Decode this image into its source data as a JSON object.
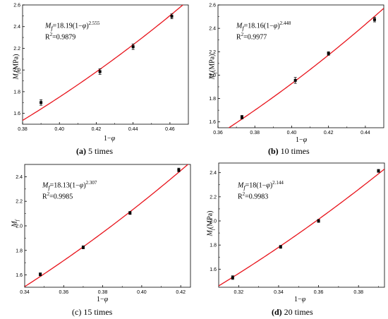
{
  "chart_data": [
    {
      "type": "scatter",
      "id": "a",
      "caption_letter": "(a)",
      "caption_text": " 5 times",
      "ylabel_prefix": "M",
      "ylabel_sub": "f",
      "ylabel_unit": "(MPa)",
      "xlabel_prefix": "1−",
      "xlabel_var": "φ",
      "xlim": [
        0.38,
        0.47
      ],
      "ylim": [
        1.5,
        2.6
      ],
      "xticks": [
        "0.38",
        "0.40",
        "0.42",
        "0.44",
        "0.46"
      ],
      "xtick_values": [
        0.38,
        0.4,
        0.42,
        0.44,
        0.46
      ],
      "yticks": [
        "1.6",
        "1.8",
        "2.0",
        "2.2",
        "2.4",
        "2.6"
      ],
      "ytick_values": [
        1.6,
        1.8,
        2.0,
        2.2,
        2.4,
        2.6
      ],
      "points": [
        {
          "x": 0.39,
          "y": 1.7,
          "err": 0.025
        },
        {
          "x": 0.422,
          "y": 1.985,
          "err": 0.025
        },
        {
          "x": 0.44,
          "y": 2.215,
          "err": 0.025
        },
        {
          "x": 0.461,
          "y": 2.495,
          "err": 0.022
        }
      ],
      "fit": {
        "a": 18.19,
        "b": 2.555
      },
      "eq_prefix": "M",
      "eq_sub": "f",
      "eq_mid": "=18.19(1−",
      "eq_var": "φ",
      "eq_close": ")",
      "eq_exp": "2.555",
      "r2_label": "R",
      "r2_sup": "2",
      "r2_val": "=0.9879",
      "colors": {
        "fit": "#e8141c",
        "points": "#000000"
      }
    },
    {
      "type": "scatter",
      "id": "b",
      "caption_letter": "(b)",
      "caption_text": " 10 times",
      "ylabel_prefix": "M",
      "ylabel_sub": "f",
      "ylabel_unit": "(MPa)",
      "xlabel_prefix": "1−",
      "xlabel_var": "φ",
      "xlim": [
        0.36,
        0.45
      ],
      "ylim": [
        1.55,
        2.6
      ],
      "xticks": [
        "0.36",
        "0.38",
        "0.40",
        "0.42",
        "0.44"
      ],
      "xtick_values": [
        0.36,
        0.38,
        0.4,
        0.42,
        0.44
      ],
      "yticks": [
        "1.6",
        "1.8",
        "2.0",
        "2.2",
        "2.4",
        "2.6"
      ],
      "ytick_values": [
        1.6,
        1.8,
        2.0,
        2.2,
        2.4,
        2.6
      ],
      "points": [
        {
          "x": 0.373,
          "y": 1.64,
          "err": 0.015
        },
        {
          "x": 0.402,
          "y": 1.955,
          "err": 0.025
        },
        {
          "x": 0.42,
          "y": 2.185,
          "err": 0.015
        },
        {
          "x": 0.445,
          "y": 2.475,
          "err": 0.02
        }
      ],
      "fit": {
        "a": 18.16,
        "b": 2.448
      },
      "eq_prefix": "M",
      "eq_sub": "f",
      "eq_mid": "=18.16(1−",
      "eq_var": "φ",
      "eq_close": ")",
      "eq_exp": "2.448",
      "r2_label": "R",
      "r2_sup": "2",
      "r2_val": "=0.9977",
      "colors": {
        "fit": "#e8141c",
        "points": "#000000"
      }
    },
    {
      "type": "scatter",
      "id": "c",
      "caption_letter": "",
      "caption_text": "(c) 15 times",
      "ylabel_prefix": "M",
      "ylabel_sub": "f",
      "ylabel_unit": "",
      "xlabel_prefix": "1−",
      "xlabel_var": "φ",
      "xlim": [
        0.34,
        0.425
      ],
      "ylim": [
        1.5,
        2.5
      ],
      "xticks": [
        "0.34",
        "0.36",
        "0.38",
        "0.40",
        "0.42"
      ],
      "xtick_values": [
        0.34,
        0.36,
        0.38,
        0.4,
        0.42
      ],
      "yticks": [
        "1.6",
        "1.8",
        "2.0",
        "2.2",
        "2.4"
      ],
      "ytick_values": [
        1.6,
        1.8,
        2.0,
        2.2,
        2.4
      ],
      "points": [
        {
          "x": 0.348,
          "y": 1.605,
          "err": 0.012
        },
        {
          "x": 0.37,
          "y": 1.825,
          "err": 0.012
        },
        {
          "x": 0.394,
          "y": 2.105,
          "err": 0.012
        },
        {
          "x": 0.419,
          "y": 2.455,
          "err": 0.015
        }
      ],
      "fit": {
        "a": 18.13,
        "b": 2.307
      },
      "eq_prefix": "M",
      "eq_sub": "f",
      "eq_mid": "=18.13(1−",
      "eq_var": "φ",
      "eq_close": ")",
      "eq_exp": "2.307",
      "r2_label": "R",
      "r2_sup": "2",
      "r2_val": "=0.9985",
      "colors": {
        "fit": "#e8141c",
        "points": "#000000"
      }
    },
    {
      "type": "scatter",
      "id": "d",
      "caption_letter": "(d)",
      "caption_text": " 20 times",
      "ylabel_prefix": "M",
      "ylabel_sub": "f",
      "ylabel_unit": "(MPa)",
      "xlabel_prefix": "1−",
      "xlabel_var": "φ",
      "xlim": [
        0.31,
        0.393
      ],
      "ylim": [
        1.45,
        2.48
      ],
      "xticks": [
        "0.32",
        "0.34",
        "0.36",
        "0.38"
      ],
      "xtick_values": [
        0.32,
        0.34,
        0.36,
        0.38
      ],
      "yticks": [
        "1.6",
        "1.8",
        "2.0",
        "2.2",
        "2.4"
      ],
      "ytick_values": [
        1.6,
        1.8,
        2.0,
        2.2,
        2.4
      ],
      "points": [
        {
          "x": 0.317,
          "y": 1.53,
          "err": 0.015
        },
        {
          "x": 0.341,
          "y": 1.785,
          "err": 0.012
        },
        {
          "x": 0.36,
          "y": 2.0,
          "err": 0.012
        },
        {
          "x": 0.39,
          "y": 2.415,
          "err": 0.012
        }
      ],
      "fit": {
        "a": 18.0,
        "b": 2.144
      },
      "eq_prefix": "M",
      "eq_sub": "f",
      "eq_mid": "=18(1−",
      "eq_var": "φ",
      "eq_close": ")",
      "eq_exp": "2.144",
      "r2_label": "R",
      "r2_sup": "2",
      "r2_val": "=0.9983",
      "colors": {
        "fit": "#e8141c",
        "points": "#000000"
      }
    }
  ]
}
